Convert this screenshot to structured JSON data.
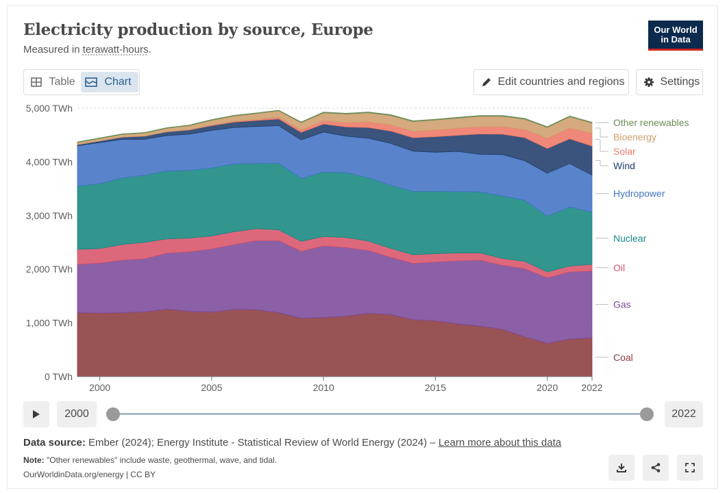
{
  "header": {
    "title": "Electricity production by source, Europe",
    "subtitle_prefix": "Measured in ",
    "subtitle_unit": "terawatt-hours",
    "subtitle_suffix": ".",
    "logo_line1": "Our World",
    "logo_line2": "in Data"
  },
  "toolbar": {
    "table_label": "Table",
    "chart_label": "Chart",
    "edit_label": "Edit countries and regions",
    "settings_label": "Settings"
  },
  "timeline": {
    "start_label": "2000",
    "end_label": "2022"
  },
  "footer": {
    "source_label": "Data source:",
    "source_text": " Ember (2024); Energy Institute - Statistical Review of World Energy (2024) – ",
    "source_link": "Learn more about this data",
    "note_label": "Note:",
    "note_text": " \"Other renewables\" include waste, geothermal, wave, and tidal.",
    "credit": "OurWorldinData.org/energy | CC BY"
  },
  "colors": {
    "Coal": "#8c3b3e",
    "Gas": "#7b4a9a",
    "Oil": "#d8536a",
    "Nuclear": "#16877f",
    "Hydropower": "#4273c4",
    "Wind": "#1f3c6b",
    "Solar": "#ee7766",
    "Bioenergy": "#cf9e6c",
    "Other renewables": "#6c8c56"
  },
  "chart_data": {
    "type": "area",
    "stacked": true,
    "title": "Electricity production by source, Europe",
    "unit": "TWh",
    "x": [
      1999,
      2000,
      2001,
      2002,
      2003,
      2004,
      2005,
      2006,
      2007,
      2008,
      2009,
      2010,
      2011,
      2012,
      2013,
      2014,
      2015,
      2016,
      2017,
      2018,
      2019,
      2020,
      2021,
      2022
    ],
    "xlim": [
      1999,
      2022
    ],
    "ylim": [
      0,
      5000
    ],
    "yticks": [
      0,
      1000,
      2000,
      3000,
      4000,
      5000
    ],
    "ytick_labels": [
      "0 TWh",
      "1,000 TWh",
      "2,000 TWh",
      "3,000 TWh",
      "4,000 TWh",
      "5,000 TWh"
    ],
    "xticks": [
      2000,
      2005,
      2010,
      2015,
      2020,
      2022
    ],
    "xtick_labels": [
      "2000",
      "2005",
      "2010",
      "2015",
      "2020",
      "2022"
    ],
    "series": [
      {
        "name": "Coal",
        "values": [
          1190,
          1185,
          1190,
          1205,
          1255,
          1215,
          1200,
          1250,
          1245,
          1190,
          1085,
          1100,
          1125,
          1180,
          1155,
          1060,
          1040,
          980,
          940,
          880,
          740,
          620,
          700,
          720
        ]
      },
      {
        "name": "Gas",
        "values": [
          900,
          930,
          980,
          990,
          1045,
          1110,
          1180,
          1210,
          1290,
          1345,
          1250,
          1335,
          1280,
          1170,
          1070,
          1050,
          1095,
          1180,
          1230,
          1195,
          1270,
          1220,
          1250,
          1250
        ]
      },
      {
        "name": "Oil",
        "values": [
          280,
          270,
          290,
          305,
          265,
          255,
          240,
          240,
          220,
          200,
          185,
          175,
          185,
          175,
          165,
          160,
          155,
          145,
          135,
          125,
          135,
          110,
          110,
          120
        ]
      },
      {
        "name": "Nuclear",
        "values": [
          1180,
          1210,
          1240,
          1250,
          1265,
          1265,
          1265,
          1260,
          1215,
          1240,
          1170,
          1200,
          1210,
          1180,
          1175,
          1180,
          1160,
          1140,
          1135,
          1165,
          1140,
          1040,
          1100,
          975
        ]
      },
      {
        "name": "Hydropower",
        "values": [
          750,
          765,
          720,
          670,
          660,
          670,
          700,
          680,
          690,
          700,
          720,
          745,
          680,
          735,
          780,
          750,
          730,
          750,
          700,
          770,
          735,
          800,
          810,
          690
        ]
      },
      {
        "name": "Wind",
        "values": [
          20,
          30,
          40,
          60,
          70,
          80,
          90,
          100,
          110,
          125,
          140,
          150,
          170,
          200,
          230,
          250,
          290,
          300,
          380,
          380,
          430,
          460,
          460,
          540
        ]
      },
      {
        "name": "Solar",
        "values": [
          1,
          1,
          2,
          2,
          3,
          5,
          10,
          15,
          20,
          30,
          45,
          60,
          80,
          105,
          115,
          120,
          125,
          130,
          135,
          140,
          150,
          190,
          200,
          240
        ]
      },
      {
        "name": "Bioenergy",
        "values": [
          40,
          45,
          50,
          55,
          65,
          75,
          90,
          100,
          110,
          120,
          135,
          150,
          160,
          170,
          175,
          180,
          185,
          190,
          195,
          195,
          195,
          200,
          210,
          190
        ]
      },
      {
        "name": "Other renewables",
        "values": [
          10,
          10,
          10,
          10,
          10,
          10,
          12,
          12,
          12,
          12,
          14,
          14,
          15,
          15,
          15,
          15,
          15,
          15,
          15,
          15,
          15,
          15,
          15,
          15
        ]
      }
    ],
    "legend_labels": [
      "Other renewables",
      "Bioenergy",
      "Solar",
      "Wind",
      "Hydropower",
      "Nuclear",
      "Oil",
      "Gas",
      "Coal"
    ],
    "legend_placement": "right"
  }
}
